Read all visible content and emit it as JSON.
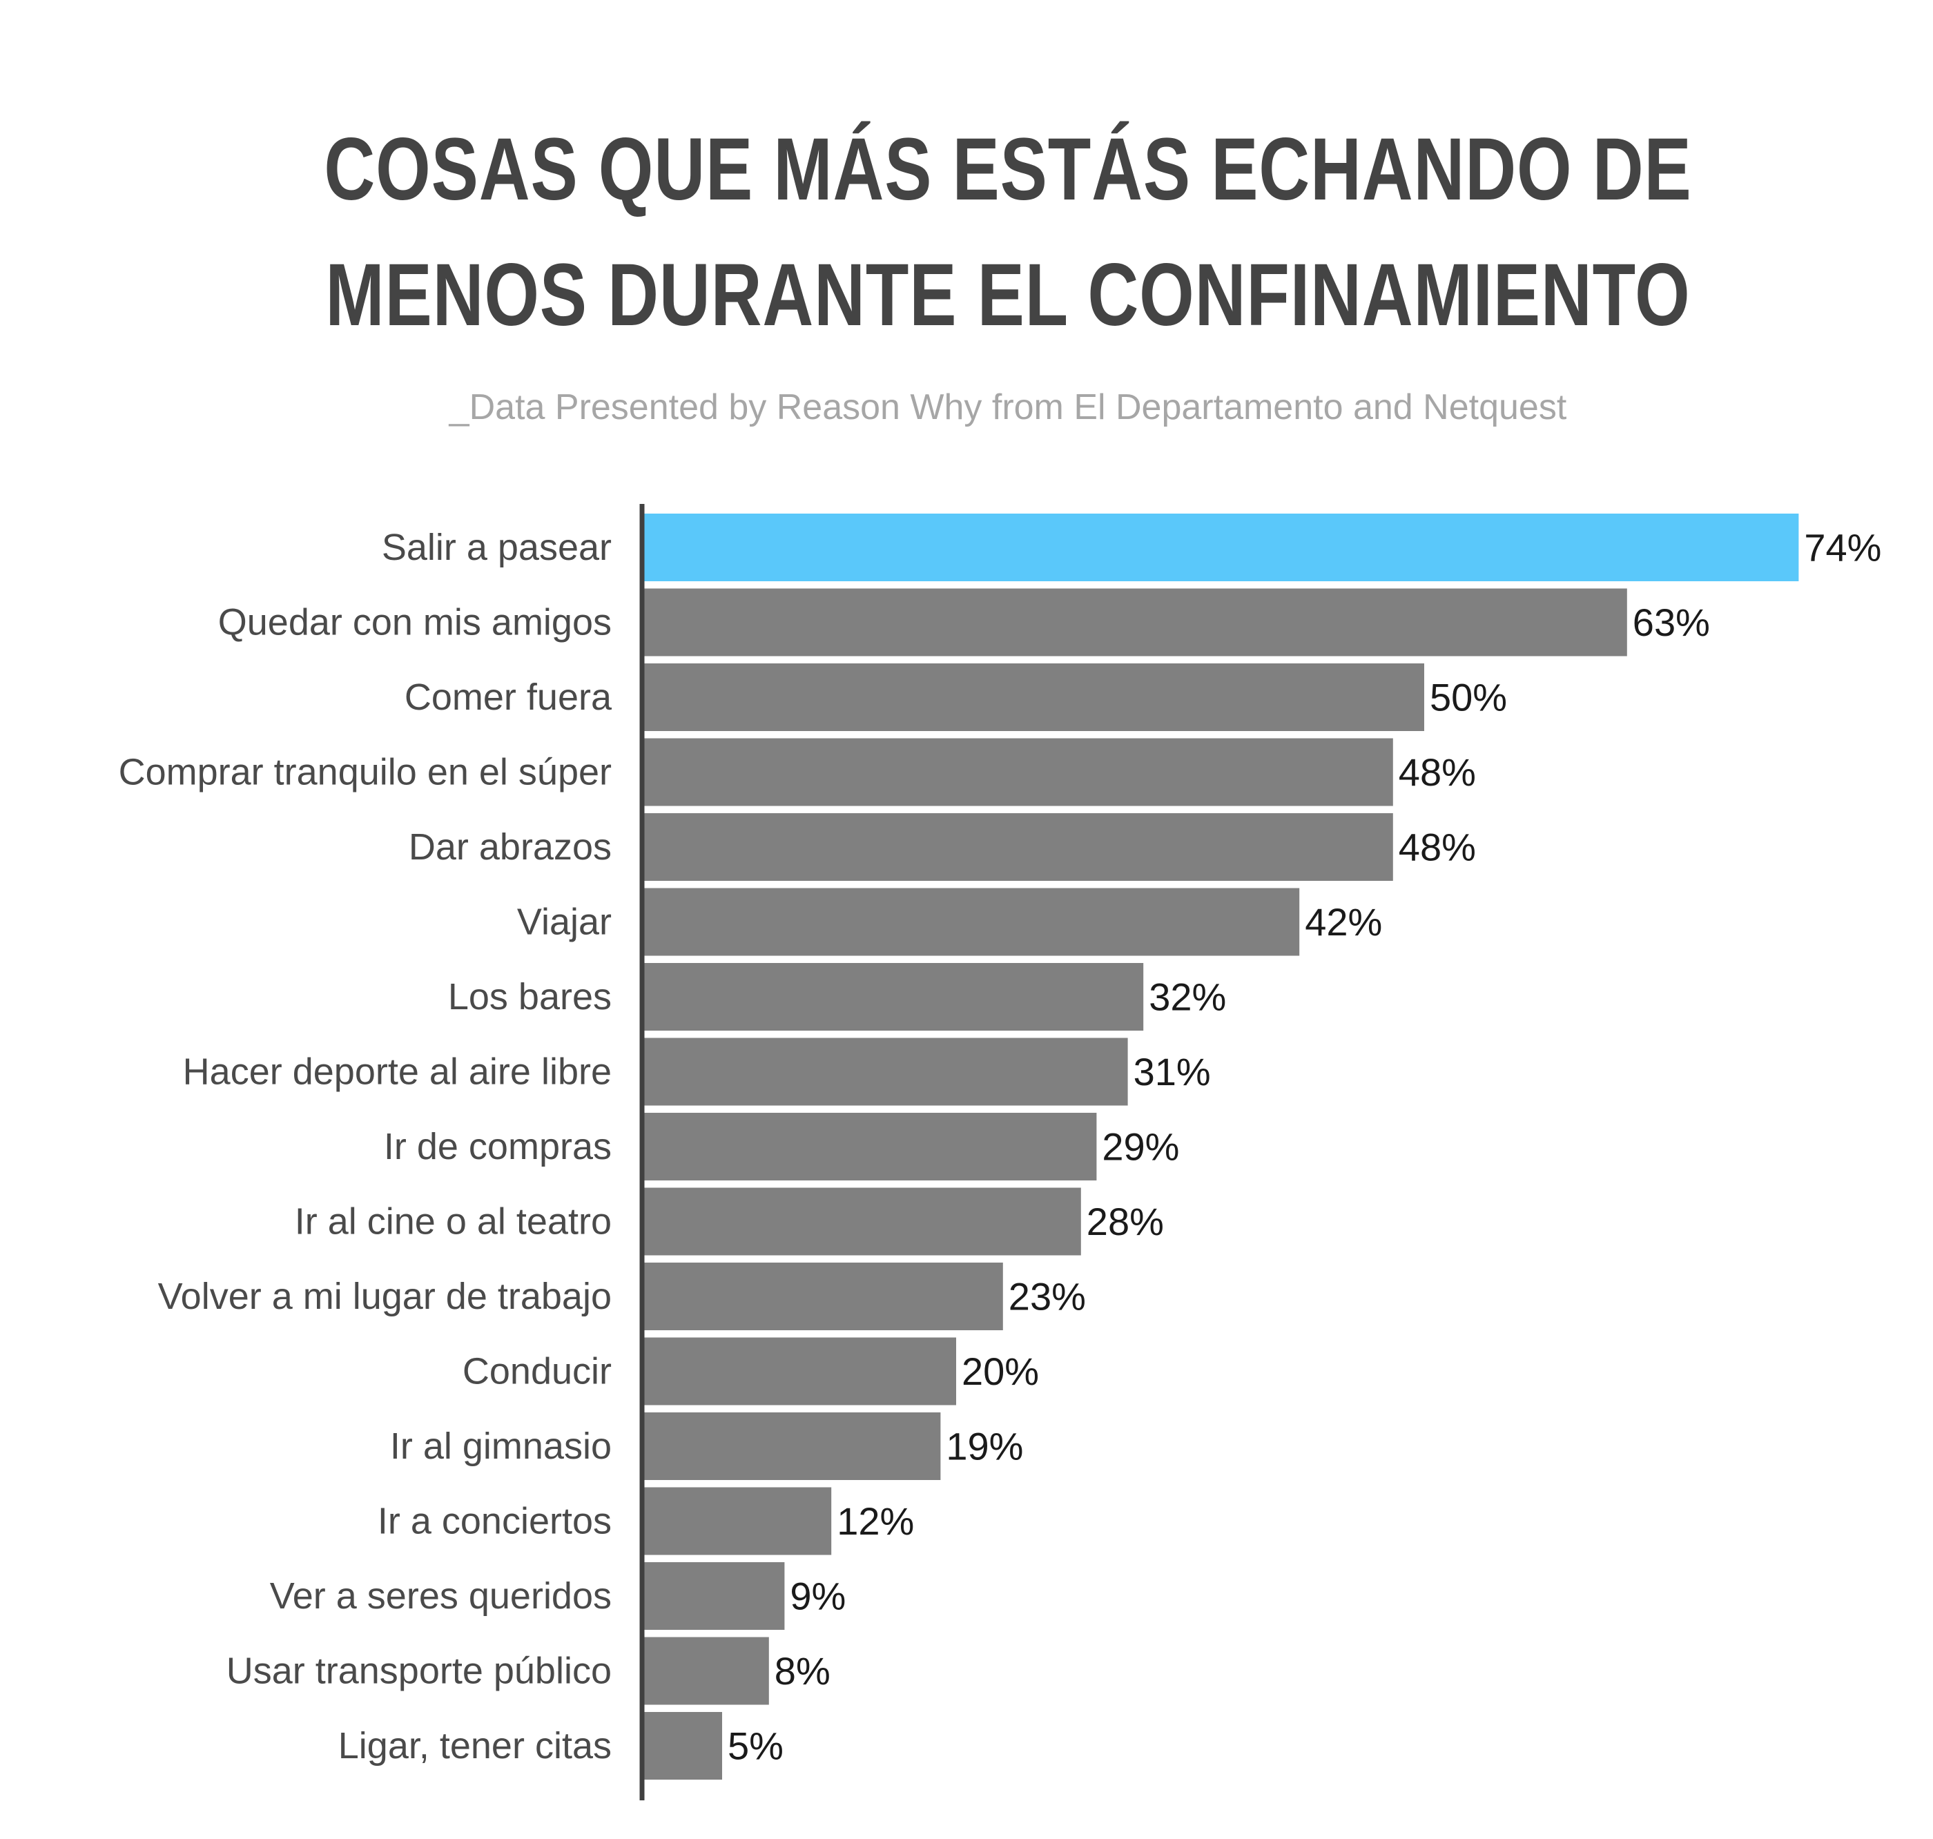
{
  "chart_data": {
    "type": "bar",
    "orientation": "horizontal",
    "title": [
      "COSAS QUE MÁS ESTÁS ECHANDO DE",
      "MENOS DURANTE EL CONFINAMIENTO"
    ],
    "subtitle": "_Data Presented by Reason Why from El Departamento and Netquest",
    "categories": [
      "Salir a pasear",
      "Quedar con mis amigos",
      "Comer fuera",
      "Comprar tranquilo en el súper",
      "Dar abrazos",
      "Viajar",
      "Los bares",
      "Hacer deporte al aire libre",
      "Ir de compras",
      "Ir al cine o al teatro",
      "Volver a mi lugar de trabajo",
      "Conducir",
      "Ir al gimnasio",
      "Ir a conciertos",
      "Ver a seres queridos",
      "Usar transporte público",
      "Ligar, tener citas"
    ],
    "values": [
      74,
      63,
      50,
      48,
      48,
      42,
      32,
      31,
      29,
      28,
      23,
      20,
      19,
      12,
      9,
      8,
      5
    ],
    "value_labels": [
      "74%",
      "63%",
      "50%",
      "48%",
      "48%",
      "42%",
      "32%",
      "31%",
      "29%",
      "28%",
      "23%",
      "20%",
      "19%",
      "12%",
      "9%",
      "8%",
      "5%"
    ],
    "unit": "%",
    "highlight_index": 0,
    "colors": {
      "highlight": "#5ac8fa",
      "bar": "#808080",
      "axis": "#404040",
      "title": "#444444",
      "subtitle": "#a6a6a6"
    },
    "grid": false,
    "legend": "none"
  }
}
